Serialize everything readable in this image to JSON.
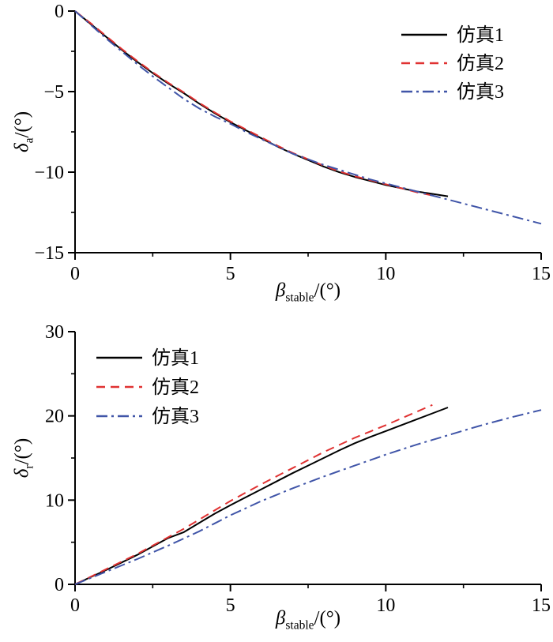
{
  "figure": {
    "background": "#ffffff"
  },
  "chart_data": [
    {
      "type": "line",
      "title": "",
      "xlabel": {
        "base": "β",
        "sub": "stable",
        "rest": "/(°)"
      },
      "ylabel": {
        "base": "δ",
        "sub": "a",
        "rest": "/(°)"
      },
      "xlim": [
        0,
        15
      ],
      "ylim": [
        -15,
        0
      ],
      "xticks": [
        0,
        5,
        10,
        15
      ],
      "xtick_labels": [
        "0",
        "5",
        "10",
        "15"
      ],
      "yticks": [
        0,
        -5,
        -10,
        -15
      ],
      "ytick_labels": [
        "0",
        "−5",
        "−10",
        "−15"
      ],
      "xminor": [
        2.5,
        7.5,
        12.5
      ],
      "yminor": [
        -2.5,
        -7.5,
        -12.5
      ],
      "grid": false,
      "legend_position": "top-right",
      "series": [
        {
          "name": "仿真1",
          "color": "#000000",
          "style": "solid",
          "points": [
            [
              0,
              0
            ],
            [
              0.5,
              -0.8
            ],
            [
              1,
              -1.6
            ],
            [
              1.5,
              -2.4
            ],
            [
              2,
              -3.15
            ],
            [
              2.5,
              -3.85
            ],
            [
              3,
              -4.5
            ],
            [
              3.5,
              -5.1
            ],
            [
              4,
              -5.75
            ],
            [
              4.5,
              -6.35
            ],
            [
              5,
              -6.9
            ],
            [
              5.5,
              -7.4
            ],
            [
              6,
              -7.9
            ],
            [
              6.5,
              -8.4
            ],
            [
              7,
              -8.85
            ],
            [
              7.5,
              -9.25
            ],
            [
              8,
              -9.65
            ],
            [
              8.5,
              -10
            ],
            [
              9,
              -10.3
            ],
            [
              9.5,
              -10.55
            ],
            [
              10,
              -10.8
            ],
            [
              10.5,
              -11
            ],
            [
              11,
              -11.2
            ],
            [
              11.5,
              -11.35
            ],
            [
              12,
              -11.5
            ]
          ]
        },
        {
          "name": "仿真2",
          "color": "#e03232",
          "style": "dashed",
          "points": [
            [
              0,
              0
            ],
            [
              0.5,
              -0.75
            ],
            [
              1,
              -1.55
            ],
            [
              1.5,
              -2.35
            ],
            [
              2,
              -3.1
            ],
            [
              2.5,
              -3.8
            ],
            [
              3,
              -4.45
            ],
            [
              3.5,
              -5.05
            ],
            [
              4,
              -5.7
            ],
            [
              4.5,
              -6.3
            ],
            [
              5,
              -6.85
            ],
            [
              5.5,
              -7.35
            ],
            [
              6,
              -7.85
            ],
            [
              6.5,
              -8.35
            ],
            [
              7,
              -8.8
            ],
            [
              7.5,
              -9.2
            ],
            [
              8,
              -9.6
            ],
            [
              8.5,
              -9.95
            ],
            [
              9,
              -10.25
            ],
            [
              9.5,
              -10.5
            ],
            [
              10,
              -10.75
            ],
            [
              10.5,
              -11
            ],
            [
              11,
              -11.25
            ],
            [
              11.5,
              -11.45
            ]
          ]
        },
        {
          "name": "仿真3",
          "color": "#4055a8",
          "style": "dashdot",
          "points": [
            [
              0,
              0
            ],
            [
              0.5,
              -0.85
            ],
            [
              1,
              -1.7
            ],
            [
              1.5,
              -2.5
            ],
            [
              2,
              -3.3
            ],
            [
              2.5,
              -4.05
            ],
            [
              3,
              -4.75
            ],
            [
              3.5,
              -5.45
            ],
            [
              4,
              -6.05
            ],
            [
              4.5,
              -6.55
            ],
            [
              5,
              -7
            ],
            [
              5.5,
              -7.5
            ],
            [
              6,
              -7.95
            ],
            [
              6.5,
              -8.4
            ],
            [
              7,
              -8.85
            ],
            [
              7.5,
              -9.2
            ],
            [
              8,
              -9.55
            ],
            [
              8.5,
              -9.85
            ],
            [
              9,
              -10.15
            ],
            [
              9.5,
              -10.45
            ],
            [
              10,
              -10.7
            ],
            [
              10.5,
              -10.95
            ],
            [
              11,
              -11.2
            ],
            [
              11.5,
              -11.45
            ],
            [
              12,
              -11.7
            ],
            [
              12.5,
              -11.95
            ],
            [
              13,
              -12.2
            ],
            [
              13.5,
              -12.45
            ],
            [
              14,
              -12.7
            ],
            [
              14.5,
              -12.95
            ],
            [
              15,
              -13.2
            ]
          ]
        }
      ]
    },
    {
      "type": "line",
      "title": "",
      "xlabel": {
        "base": "β",
        "sub": "stable",
        "rest": "/(°)"
      },
      "ylabel": {
        "base": "δ",
        "sub": "r",
        "rest": "/(°)"
      },
      "xlim": [
        0,
        15
      ],
      "ylim": [
        0,
        30
      ],
      "xticks": [
        0,
        5,
        10,
        15
      ],
      "xtick_labels": [
        "0",
        "5",
        "10",
        "15"
      ],
      "yticks": [
        0,
        10,
        20,
        30
      ],
      "ytick_labels": [
        "0",
        "10",
        "20",
        "30"
      ],
      "xminor": [
        2.5,
        7.5,
        12.5
      ],
      "yminor": [
        5,
        15,
        25
      ],
      "grid": false,
      "legend_position": "top-left",
      "series": [
        {
          "name": "仿真1",
          "color": "#000000",
          "style": "solid",
          "points": [
            [
              0,
              0
            ],
            [
              0.5,
              0.85
            ],
            [
              1,
              1.7
            ],
            [
              1.5,
              2.6
            ],
            [
              2,
              3.5
            ],
            [
              2.5,
              4.5
            ],
            [
              3,
              5.5
            ],
            [
              3.5,
              6.2
            ],
            [
              4,
              7.3
            ],
            [
              4.5,
              8.4
            ],
            [
              5,
              9.4
            ],
            [
              5.5,
              10.35
            ],
            [
              6,
              11.3
            ],
            [
              6.5,
              12.25
            ],
            [
              7,
              13.2
            ],
            [
              7.5,
              14.1
            ],
            [
              8,
              15
            ],
            [
              8.5,
              15.9
            ],
            [
              9,
              16.75
            ],
            [
              9.5,
              17.5
            ],
            [
              10,
              18.2
            ],
            [
              10.5,
              18.9
            ],
            [
              11,
              19.6
            ],
            [
              11.5,
              20.3
            ],
            [
              12,
              21
            ]
          ]
        },
        {
          "name": "仿真2",
          "color": "#e03232",
          "style": "dashed",
          "points": [
            [
              0,
              0
            ],
            [
              0.5,
              0.9
            ],
            [
              1,
              1.8
            ],
            [
              1.5,
              2.7
            ],
            [
              2,
              3.6
            ],
            [
              2.5,
              4.6
            ],
            [
              3,
              5.6
            ],
            [
              3.5,
              6.6
            ],
            [
              4,
              7.7
            ],
            [
              4.5,
              8.8
            ],
            [
              5,
              9.9
            ],
            [
              5.5,
              10.9
            ],
            [
              6,
              11.9
            ],
            [
              6.5,
              12.85
            ],
            [
              7,
              13.8
            ],
            [
              7.5,
              14.75
            ],
            [
              8,
              15.7
            ],
            [
              8.5,
              16.55
            ],
            [
              9,
              17.4
            ],
            [
              9.5,
              18.15
            ],
            [
              10,
              18.9
            ],
            [
              10.5,
              19.7
            ],
            [
              11,
              20.5
            ],
            [
              11.5,
              21.3
            ]
          ]
        },
        {
          "name": "仿真3",
          "color": "#4055a8",
          "style": "dashdot",
          "points": [
            [
              0,
              0
            ],
            [
              0.5,
              0.75
            ],
            [
              1,
              1.5
            ],
            [
              1.5,
              2.25
            ],
            [
              2,
              3
            ],
            [
              2.5,
              3.8
            ],
            [
              3,
              4.6
            ],
            [
              3.5,
              5.45
            ],
            [
              4,
              6.3
            ],
            [
              4.5,
              7.25
            ],
            [
              5,
              8.2
            ],
            [
              5.5,
              9.05
            ],
            [
              6,
              9.9
            ],
            [
              6.5,
              10.65
            ],
            [
              7,
              11.4
            ],
            [
              7.5,
              12.1
            ],
            [
              8,
              12.8
            ],
            [
              8.5,
              13.45
            ],
            [
              9,
              14.1
            ],
            [
              9.5,
              14.75
            ],
            [
              10,
              15.4
            ],
            [
              10.5,
              16
            ],
            [
              11,
              16.6
            ],
            [
              11.5,
              17.15
            ],
            [
              12,
              17.7
            ],
            [
              12.5,
              18.25
            ],
            [
              13,
              18.8
            ],
            [
              13.5,
              19.3
            ],
            [
              14,
              19.8
            ],
            [
              14.5,
              20.25
            ],
            [
              15,
              20.7
            ]
          ]
        }
      ]
    }
  ]
}
